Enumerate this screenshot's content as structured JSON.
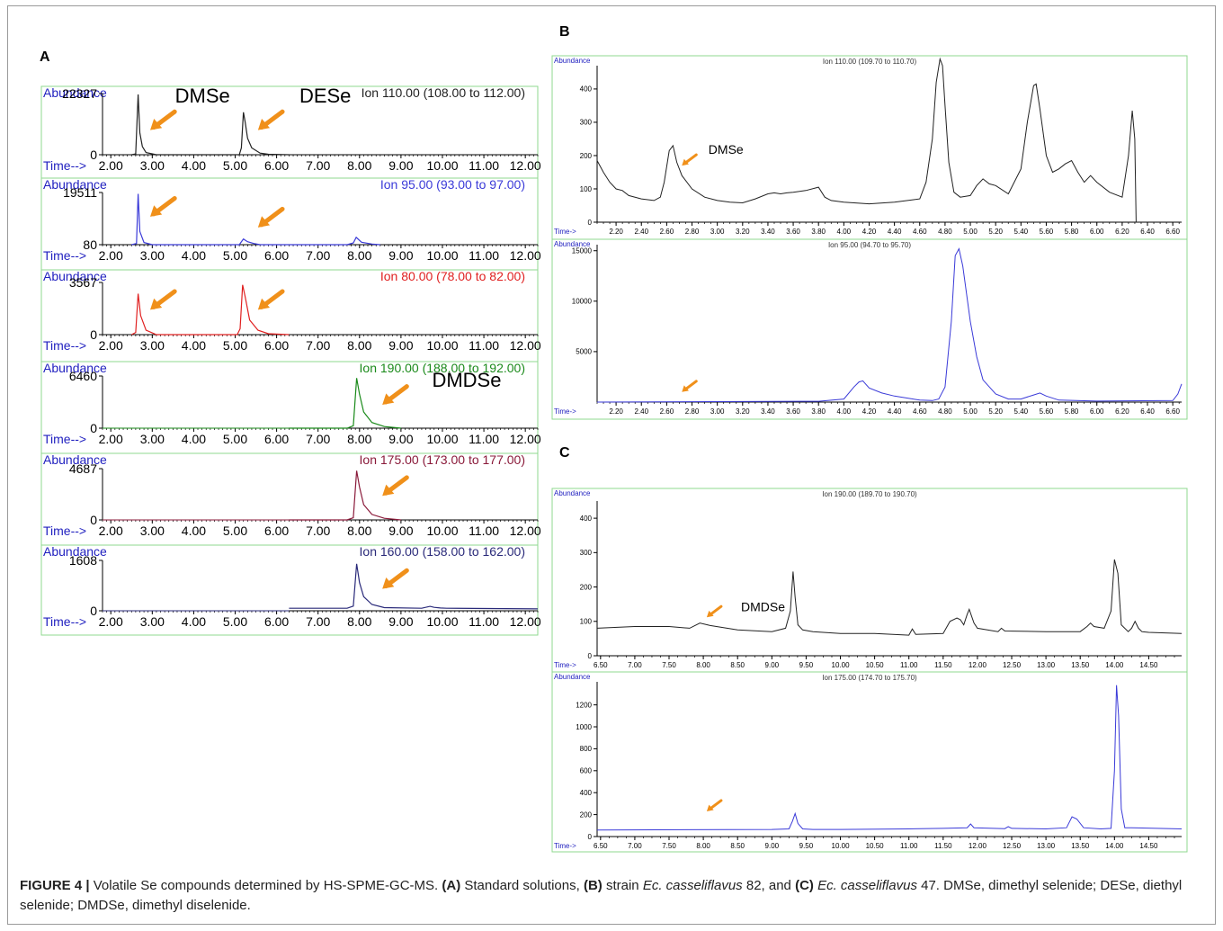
{
  "colors": {
    "frame_border": "#8fd88f",
    "axis": "#000000",
    "label_blue": "#1f1fbf",
    "arrow": "#f0901a",
    "trace_black": "#222222",
    "trace_blue": "#3a3ad8",
    "trace_red": "#e02020",
    "trace_green": "#1a8a1a",
    "trace_maroon": "#8a1a3a",
    "trace_navy": "#2a2a7a"
  },
  "panel_labels": {
    "a": "A",
    "b": "B",
    "c": "C"
  },
  "caption": {
    "figure": "FIGURE 4 |",
    "t1": " Volatile Se compounds determined by HS-SPME-GC-MS. ",
    "a": "(A)",
    "t2": " Standard solutions, ",
    "b": "(B)",
    "t3": " strain ",
    "sp1": "Ec. casseliflavus",
    "t4": " 82, and ",
    "c": "(C)",
    "t5": " ",
    "sp2": "Ec. casseliflavus",
    "t6": " 47. DMSe, dimethyl selenide; DESe, diethyl selenide; DMDSe, dimethyl diselenide."
  },
  "chart_data": [
    {
      "panel": "A",
      "type": "line",
      "ylabel": "Abundance",
      "xlabel": "Time-->",
      "ion": "Ion 110.00 (108.00 to 112.00)",
      "color": "#222222",
      "xlim": [
        1.8,
        12.3
      ],
      "ylim": [
        0,
        22327
      ],
      "yticks": [
        {
          "v": 0,
          "label": "0"
        },
        {
          "v": 22327,
          "label": "22327"
        }
      ],
      "xticks": [
        "2.00",
        "3.00",
        "4.00",
        "5.00",
        "6.00",
        "7.00",
        "8.00",
        "9.00",
        "10.00",
        "11.00",
        "12.00"
      ],
      "x": [
        2.5,
        2.6,
        2.66,
        2.7,
        2.76,
        2.85,
        3.1,
        5.1,
        5.15,
        5.2,
        5.24,
        5.3,
        5.4,
        5.6,
        5.8,
        6.3
      ],
      "y": [
        0,
        300,
        22000,
        8000,
        3000,
        800,
        0,
        0,
        2500,
        15500,
        12000,
        6000,
        2500,
        600,
        150,
        0
      ],
      "trace_end": 6.3,
      "annotations": [
        {
          "text": "DMSe",
          "x": 3.55,
          "y": 19000,
          "size": 22
        },
        {
          "text": "DESe",
          "x": 6.55,
          "y": 19000,
          "size": 22
        }
      ],
      "arrows": [
        {
          "x": 2.95,
          "y": 9000
        },
        {
          "x": 5.55,
          "y": 9000
        }
      ]
    },
    {
      "panel": "A",
      "type": "line",
      "ylabel": "Abundance",
      "xlabel": "Time-->",
      "ion": "Ion  95.00 (93.00 to 97.00)",
      "color": "#3a3ad8",
      "xlim": [
        1.8,
        12.3
      ],
      "ylim": [
        80,
        19511
      ],
      "yticks": [
        {
          "v": 80,
          "label": "80"
        },
        {
          "v": 19511,
          "label": "19511"
        }
      ],
      "xticks": [
        "2.00",
        "3.00",
        "4.00",
        "5.00",
        "6.00",
        "7.00",
        "8.00",
        "9.00",
        "10.00",
        "11.00",
        "12.00"
      ],
      "x": [
        2.5,
        2.62,
        2.66,
        2.7,
        2.8,
        3.0,
        5.1,
        5.2,
        5.3,
        5.45,
        5.6,
        7.7,
        7.85,
        7.92,
        8.05,
        8.3,
        8.5
      ],
      "y": [
        80,
        500,
        19000,
        5000,
        900,
        80,
        80,
        2200,
        1200,
        500,
        80,
        80,
        700,
        2800,
        1000,
        300,
        80
      ],
      "trace_end": 8.5,
      "annotations": [],
      "arrows": [
        {
          "x": 2.95,
          "y": 10500
        },
        {
          "x": 5.55,
          "y": 6500
        }
      ]
    },
    {
      "panel": "A",
      "type": "line",
      "ylabel": "Abundance",
      "xlabel": "Time-->",
      "ion": "Ion  80.00 (78.00 to 82.00)",
      "color": "#e02020",
      "xlim": [
        1.8,
        12.3
      ],
      "ylim": [
        0,
        3567
      ],
      "yticks": [
        {
          "v": 0,
          "label": "0"
        },
        {
          "v": 3567,
          "label": "3567"
        }
      ],
      "xticks": [
        "2.00",
        "3.00",
        "4.00",
        "5.00",
        "6.00",
        "7.00",
        "8.00",
        "9.00",
        "10.00",
        "11.00",
        "12.00"
      ],
      "x": [
        2.5,
        2.6,
        2.66,
        2.72,
        2.85,
        3.1,
        5.05,
        5.12,
        5.18,
        5.24,
        5.35,
        5.55,
        5.8,
        6.3
      ],
      "y": [
        0,
        150,
        2800,
        1300,
        300,
        0,
        0,
        400,
        3400,
        2600,
        1000,
        300,
        60,
        0
      ],
      "trace_end": 6.3,
      "annotations": [],
      "arrows": [
        {
          "x": 2.95,
          "y": 1700
        },
        {
          "x": 5.55,
          "y": 1700
        }
      ]
    },
    {
      "panel": "A",
      "type": "line",
      "ylabel": "Abundance",
      "xlabel": "Time-->",
      "ion": "Ion 190.00 (188.00 to 192.00)",
      "color": "#1a8a1a",
      "xlim": [
        1.8,
        12.3
      ],
      "ylim": [
        0,
        6460
      ],
      "yticks": [
        {
          "v": 0,
          "label": "0"
        },
        {
          "v": 6460,
          "label": "6460"
        }
      ],
      "xticks": [
        "2.00",
        "3.00",
        "4.00",
        "5.00",
        "6.00",
        "7.00",
        "8.00",
        "9.00",
        "10.00",
        "11.00",
        "12.00"
      ],
      "x": [
        6.3,
        7.7,
        7.85,
        7.93,
        8.0,
        8.1,
        8.3,
        8.6,
        9.0
      ],
      "y": [
        0,
        0,
        300,
        6200,
        4200,
        2000,
        700,
        200,
        0
      ],
      "trace_start": 6.3,
      "trace_end": 9.0,
      "annotations": [
        {
          "text": "DMDSe",
          "x": 9.75,
          "y": 5100,
          "size": 22
        }
      ],
      "arrows": [
        {
          "x": 8.55,
          "y": 2900
        }
      ]
    },
    {
      "panel": "A",
      "type": "line",
      "ylabel": "Abundance",
      "xlabel": "Time-->",
      "ion": "Ion 175.00 (173.00 to 177.00)",
      "color": "#8a1a3a",
      "xlim": [
        1.8,
        12.3
      ],
      "ylim": [
        0,
        4687
      ],
      "yticks": [
        {
          "v": 0,
          "label": "0"
        },
        {
          "v": 4687,
          "label": "4687"
        }
      ],
      "xticks": [
        "2.00",
        "3.00",
        "4.00",
        "5.00",
        "6.00",
        "7.00",
        "8.00",
        "9.00",
        "10.00",
        "11.00",
        "12.00"
      ],
      "x": [
        6.3,
        7.7,
        7.85,
        7.93,
        8.0,
        8.1,
        8.3,
        8.6,
        9.0
      ],
      "y": [
        0,
        0,
        200,
        4500,
        3000,
        1400,
        500,
        150,
        0
      ],
      "trace_start": 6.3,
      "trace_end": 9.0,
      "annotations": [],
      "arrows": [
        {
          "x": 8.55,
          "y": 2200
        }
      ]
    },
    {
      "panel": "A",
      "type": "line",
      "ylabel": "Abundance",
      "xlabel": "Time-->",
      "ion": "Ion 160.00 (158.00 to 162.00)",
      "color": "#2a2a7a",
      "xlim": [
        1.8,
        12.3
      ],
      "ylim": [
        0,
        1608
      ],
      "yticks": [
        {
          "v": 0,
          "label": "0"
        },
        {
          "v": 1608,
          "label": "1608"
        }
      ],
      "xticks": [
        "2.00",
        "3.00",
        "4.00",
        "5.00",
        "6.00",
        "7.00",
        "8.00",
        "9.00",
        "10.00",
        "11.00",
        "12.00"
      ],
      "x": [
        6.3,
        7.7,
        7.85,
        7.93,
        8.0,
        8.1,
        8.3,
        8.6,
        9.5,
        9.7,
        9.8,
        9.95,
        10.1,
        12.3
      ],
      "y": [
        80,
        80,
        150,
        1500,
        900,
        450,
        200,
        100,
        80,
        140,
        110,
        90,
        80,
        60
      ],
      "trace_start": 6.3,
      "annotations": [],
      "arrows": [
        {
          "x": 8.55,
          "y": 700
        }
      ]
    },
    {
      "panel": "B",
      "type": "line",
      "ylabel": "Abundance",
      "xlabel": "Time->",
      "ion": "Ion 110.00 (109.70 to 110.70)",
      "color": "#222222",
      "xlim": [
        2.05,
        6.67
      ],
      "ylim": [
        0,
        470
      ],
      "yticks": [
        {
          "v": 0,
          "label": "0"
        },
        {
          "v": 100,
          "label": "100"
        },
        {
          "v": 200,
          "label": "200"
        },
        {
          "v": 300,
          "label": "300"
        },
        {
          "v": 400,
          "label": "400"
        }
      ],
      "xticks": [
        "2.20",
        "2.40",
        "2.60",
        "2.80",
        "3.00",
        "3.20",
        "3.40",
        "3.60",
        "3.80",
        "4.00",
        "4.20",
        "4.40",
        "4.60",
        "4.80",
        "5.00",
        "5.20",
        "5.40",
        "5.60",
        "5.80",
        "6.00",
        "6.20",
        "6.40",
        "6.60"
      ],
      "x": [
        2.05,
        2.1,
        2.15,
        2.2,
        2.25,
        2.3,
        2.4,
        2.5,
        2.55,
        2.58,
        2.62,
        2.65,
        2.68,
        2.72,
        2.8,
        2.9,
        3.0,
        3.1,
        3.2,
        3.3,
        3.4,
        3.45,
        3.5,
        3.55,
        3.6,
        3.7,
        3.8,
        3.85,
        3.9,
        4.0,
        4.2,
        4.4,
        4.6,
        4.65,
        4.7,
        4.73,
        4.76,
        4.78,
        4.8,
        4.83,
        4.87,
        4.92,
        5.0,
        5.05,
        5.1,
        5.15,
        5.2,
        5.3,
        5.4,
        5.45,
        5.5,
        5.52,
        5.55,
        5.6,
        5.65,
        5.7,
        5.75,
        5.8,
        5.85,
        5.9,
        5.95,
        6.0,
        6.1,
        6.2,
        6.25,
        6.28,
        6.3,
        6.31
      ],
      "y": [
        185,
        150,
        120,
        100,
        95,
        80,
        70,
        65,
        75,
        120,
        215,
        230,
        180,
        140,
        100,
        75,
        65,
        60,
        58,
        70,
        85,
        88,
        85,
        88,
        90,
        95,
        105,
        75,
        65,
        60,
        55,
        60,
        70,
        120,
        250,
        420,
        490,
        470,
        350,
        180,
        90,
        75,
        80,
        110,
        130,
        115,
        110,
        85,
        160,
        300,
        410,
        415,
        340,
        200,
        150,
        160,
        175,
        185,
        150,
        120,
        140,
        120,
        90,
        75,
        200,
        335,
        250,
        0
      ],
      "annotations": [
        {
          "text": "DMSe",
          "x": 2.93,
          "y": 205,
          "size": 14
        }
      ],
      "arrows": [
        {
          "x": 2.72,
          "y": 170
        }
      ]
    },
    {
      "panel": "B",
      "type": "line",
      "ylabel": "Abundance",
      "xlabel": "Time->",
      "ion": "Ion  95.00 (94.70 to 95.70)",
      "color": "#3a3ad8",
      "xlim": [
        2.05,
        6.67
      ],
      "ylim": [
        0,
        15600
      ],
      "yticks": [
        {
          "v": 5000,
          "label": "5000"
        },
        {
          "v": 10000,
          "label": "10000"
        },
        {
          "v": 15000,
          "label": "15000"
        }
      ],
      "xticks": [
        "2.20",
        "2.40",
        "2.60",
        "2.80",
        "3.00",
        "3.20",
        "3.40",
        "3.60",
        "3.80",
        "4.00",
        "4.20",
        "4.40",
        "4.60",
        "4.80",
        "5.00",
        "5.20",
        "5.40",
        "5.60",
        "5.80",
        "6.00",
        "6.20",
        "6.40",
        "6.60"
      ],
      "x": [
        2.05,
        3.8,
        4.0,
        4.08,
        4.12,
        4.15,
        4.2,
        4.3,
        4.4,
        4.6,
        4.7,
        4.75,
        4.8,
        4.85,
        4.88,
        4.91,
        4.94,
        5.0,
        5.05,
        5.1,
        5.2,
        5.3,
        5.4,
        5.5,
        5.55,
        5.6,
        5.7,
        6.0,
        6.6,
        6.64,
        6.67
      ],
      "y": [
        0,
        80,
        300,
        1500,
        2000,
        2100,
        1400,
        900,
        600,
        200,
        150,
        300,
        1500,
        8000,
        14500,
        15200,
        13500,
        8000,
        4500,
        2200,
        800,
        300,
        300,
        700,
        900,
        600,
        200,
        100,
        150,
        800,
        1800
      ],
      "annotations": [],
      "arrows": [
        {
          "x": 2.72,
          "y": 1000
        }
      ]
    },
    {
      "panel": "C",
      "type": "line",
      "ylabel": "Abundance",
      "xlabel": "Time->",
      "ion": "Ion 190.00 (189.70 to 190.70)",
      "color": "#222222",
      "xlim": [
        6.45,
        14.98
      ],
      "ylim": [
        0,
        450
      ],
      "yticks": [
        {
          "v": 0,
          "label": "0"
        },
        {
          "v": 100,
          "label": "100"
        },
        {
          "v": 200,
          "label": "200"
        },
        {
          "v": 300,
          "label": "300"
        },
        {
          "v": 400,
          "label": "400"
        }
      ],
      "xticks": [
        "6.50",
        "7.00",
        "7.50",
        "8.00",
        "8.50",
        "9.00",
        "9.50",
        "10.00",
        "10.50",
        "11.00",
        "11.50",
        "12.00",
        "12.50",
        "13.00",
        "13.50",
        "14.00",
        "14.50"
      ],
      "x": [
        6.45,
        7.0,
        7.5,
        7.8,
        7.95,
        8.1,
        8.5,
        9.0,
        9.2,
        9.27,
        9.31,
        9.34,
        9.38,
        9.45,
        9.6,
        10.0,
        10.5,
        11.0,
        11.05,
        11.1,
        11.5,
        11.6,
        11.7,
        11.75,
        11.8,
        11.85,
        11.88,
        11.95,
        12.0,
        12.3,
        12.35,
        12.4,
        13.0,
        13.5,
        13.6,
        13.65,
        13.7,
        13.85,
        13.95,
        14.0,
        14.05,
        14.1,
        14.2,
        14.25,
        14.3,
        14.35,
        14.4,
        14.5,
        14.98
      ],
      "y": [
        80,
        85,
        85,
        80,
        95,
        88,
        75,
        70,
        80,
        130,
        245,
        170,
        90,
        75,
        70,
        65,
        65,
        60,
        78,
        62,
        65,
        100,
        110,
        105,
        90,
        120,
        135,
        95,
        80,
        70,
        80,
        72,
        70,
        70,
        85,
        95,
        85,
        80,
        130,
        280,
        240,
        90,
        70,
        80,
        100,
        80,
        70,
        68,
        65
      ],
      "annotations": [
        {
          "text": "DMDSe",
          "x": 8.55,
          "y": 130,
          "size": 14
        }
      ],
      "arrows": [
        {
          "x": 8.05,
          "y": 112
        }
      ]
    },
    {
      "panel": "C",
      "type": "line",
      "ylabel": "Abundance",
      "xlabel": "Time->",
      "ion": "Ion 175.00 (174.70 to 175.70)",
      "color": "#3a3ad8",
      "xlim": [
        6.45,
        14.98
      ],
      "ylim": [
        0,
        1410
      ],
      "yticks": [
        {
          "v": 0,
          "label": "0"
        },
        {
          "v": 200,
          "label": "200"
        },
        {
          "v": 400,
          "label": "400"
        },
        {
          "v": 600,
          "label": "600"
        },
        {
          "v": 800,
          "label": "800"
        },
        {
          "v": 1000,
          "label": "1000"
        },
        {
          "v": 1200,
          "label": "1200"
        }
      ],
      "xticks": [
        "6.50",
        "7.00",
        "7.50",
        "8.00",
        "8.50",
        "9.00",
        "9.50",
        "10.00",
        "10.50",
        "11.00",
        "11.50",
        "12.00",
        "12.50",
        "13.00",
        "13.50",
        "14.00",
        "14.50"
      ],
      "x": [
        6.45,
        9.0,
        9.25,
        9.3,
        9.34,
        9.38,
        9.45,
        9.6,
        10.0,
        11.0,
        11.5,
        11.85,
        11.9,
        11.95,
        12.4,
        12.45,
        12.5,
        13.0,
        13.3,
        13.38,
        13.45,
        13.55,
        13.8,
        13.95,
        14.0,
        14.03,
        14.06,
        14.1,
        14.15,
        14.25,
        14.98
      ],
      "y": [
        60,
        65,
        70,
        140,
        210,
        120,
        70,
        65,
        65,
        70,
        75,
        80,
        115,
        80,
        72,
        90,
        75,
        70,
        80,
        180,
        160,
        80,
        70,
        75,
        600,
        1380,
        1100,
        250,
        80,
        80,
        70
      ],
      "annotations": [],
      "arrows": [
        {
          "x": 8.05,
          "y": 230
        }
      ]
    }
  ]
}
